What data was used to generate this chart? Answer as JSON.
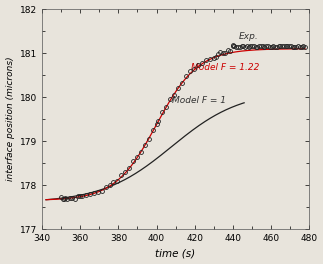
{
  "title": "",
  "xlabel": "time (s)",
  "ylabel": "interface position (microns)",
  "xlim": [
    340,
    480
  ],
  "ylim": [
    177,
    182
  ],
  "xticks": [
    340,
    360,
    380,
    400,
    420,
    440,
    460,
    480
  ],
  "yticks": [
    177,
    178,
    179,
    180,
    181,
    182
  ],
  "exp_label": "Exp.",
  "model122_label": "Model F = 1.22",
  "model1_label": "Model F = 1",
  "model122_color": "#cc0000",
  "model1_color": "#222222",
  "exp_color": "#222222",
  "background_color": "#e8e4dc"
}
